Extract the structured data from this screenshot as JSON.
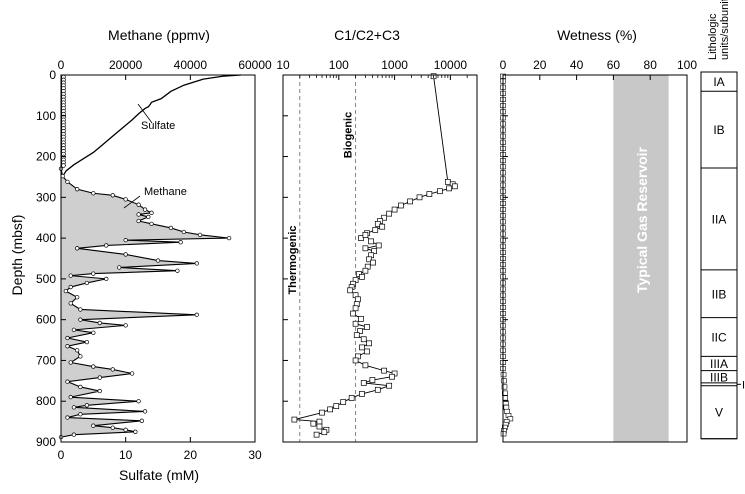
{
  "chart_data": [
    {
      "type": "line",
      "panel": "methane-sulfate",
      "title_top": "Methane (ppmv)",
      "title_bottom": "Sulfate (mM)",
      "ylabel": "Depth (mbsf)",
      "ylim": [
        0,
        900
      ],
      "y_inverted": true,
      "yticks": [
        "0",
        "100",
        "200",
        "300",
        "400",
        "500",
        "600",
        "700",
        "800",
        "900"
      ],
      "x_top": {
        "lim": [
          0,
          60000
        ],
        "ticks": [
          "0",
          "20000",
          "40000",
          "60000"
        ]
      },
      "x_bottom": {
        "lim": [
          0,
          30
        ],
        "ticks": [
          "0",
          "10",
          "20",
          "30"
        ]
      },
      "annotations": [
        "Sulfate",
        "Methane"
      ],
      "series": [
        {
          "axis": "bottom",
          "points": [
            [
              27.8,
              0
            ],
            [
              25,
              3
            ],
            [
              22,
              10
            ],
            [
              19,
              25
            ],
            [
              17,
              40
            ],
            [
              15.5,
              58
            ],
            [
              14,
              67
            ],
            [
              13.8,
              72
            ],
            [
              13.5,
              78
            ],
            [
              13,
              82
            ],
            [
              12,
              95
            ],
            [
              11,
              110
            ],
            [
              9.5,
              130
            ],
            [
              8,
              150
            ],
            [
              6.5,
              170
            ],
            [
              5,
              190
            ],
            [
              3.5,
              205
            ],
            [
              2,
              220
            ],
            [
              0.8,
              235
            ],
            [
              0.2,
              250
            ]
          ]
        },
        {
          "axis": "top",
          "points": [
            [
              0,
              230
            ],
            [
              500,
              248
            ],
            [
              2000,
              262
            ],
            [
              5000,
              280
            ],
            [
              10000,
              290
            ],
            [
              16000,
              295
            ],
            [
              20000,
              305
            ],
            [
              24000,
              318
            ],
            [
              26000,
              330
            ],
            [
              28000,
              338
            ],
            [
              24000,
              342
            ],
            [
              27000,
              348
            ],
            [
              24000,
              358
            ],
            [
              28000,
              365
            ],
            [
              34000,
              375
            ],
            [
              38000,
              385
            ],
            [
              43000,
              392
            ],
            [
              52000,
              400
            ],
            [
              20000,
              405
            ],
            [
              37000,
              410
            ],
            [
              14000,
              418
            ],
            [
              5000,
              425
            ],
            [
              20000,
              440
            ],
            [
              30000,
              455
            ],
            [
              42000,
              462
            ],
            [
              18000,
              472
            ],
            [
              36000,
              480
            ],
            [
              10000,
              487
            ],
            [
              3000,
              492
            ],
            [
              14000,
              500
            ],
            [
              8000,
              510
            ],
            [
              3000,
              520
            ],
            [
              1500,
              530
            ],
            [
              5000,
              545
            ],
            [
              3000,
              560
            ],
            [
              6000,
              575
            ],
            [
              42000,
              588
            ],
            [
              6000,
              600
            ],
            [
              12000,
              608
            ],
            [
              20000,
              614
            ],
            [
              4000,
              625
            ],
            [
              10000,
              632
            ],
            [
              2000,
              645
            ],
            [
              8000,
              655
            ],
            [
              2000,
              665
            ],
            [
              5000,
              675
            ],
            [
              6000,
              690
            ],
            [
              3000,
              705
            ],
            [
              10000,
              715
            ],
            [
              16000,
              722
            ],
            [
              22000,
              732
            ],
            [
              12000,
              742
            ],
            [
              2000,
              752
            ],
            [
              6000,
              765
            ],
            [
              12000,
              775
            ],
            [
              3000,
              790
            ],
            [
              24000,
              800
            ],
            [
              8000,
              810
            ],
            [
              4000,
              815
            ],
            [
              26000,
              825
            ],
            [
              6000,
              832
            ],
            [
              2000,
              840
            ],
            [
              25000,
              848
            ],
            [
              10000,
              860
            ],
            [
              16000,
              865
            ],
            [
              20000,
              870
            ],
            [
              23000,
              875
            ],
            [
              4000,
              882
            ],
            [
              0,
              888
            ]
          ]
        }
      ],
      "open_circles_depths": [
        5,
        12,
        19,
        26,
        33,
        40,
        47,
        54,
        61,
        68,
        75,
        82,
        89,
        96,
        103,
        110,
        117,
        124,
        131,
        138,
        145,
        152,
        159,
        166,
        173,
        180,
        187,
        194,
        201,
        208,
        215,
        222
      ]
    },
    {
      "type": "scatter",
      "panel": "c1-c2c3",
      "title": "C1/C2+C3",
      "xscale": "log",
      "xlim": [
        10,
        30000
      ],
      "xticks": [
        "10",
        "100",
        "1000",
        "10000"
      ],
      "ylim": [
        0,
        900
      ],
      "y_inverted": true,
      "reference_lines": [
        {
          "x": 20,
          "label": "Thermogenic"
        },
        {
          "x": 200,
          "label": "Biogenic"
        }
      ],
      "series": [
        {
          "points": [
            [
              5000,
              3
            ],
            [
              9000,
              262
            ],
            [
              11000,
              268
            ],
            [
              12000,
              273
            ],
            [
              9500,
              278
            ],
            [
              6500,
              285
            ],
            [
              4200,
              292
            ],
            [
              2800,
              300
            ],
            [
              1900,
              310
            ],
            [
              1300,
              320
            ],
            [
              1000,
              330
            ],
            [
              800,
              340
            ],
            [
              650,
              350
            ],
            [
              550,
              358
            ],
            [
              500,
              365
            ],
            [
              600,
              372
            ],
            [
              450,
              380
            ],
            [
              320,
              388
            ],
            [
              250,
              400
            ],
            [
              300,
              392
            ],
            [
              380,
              408
            ],
            [
              520,
              418
            ],
            [
              300,
              425
            ],
            [
              430,
              432
            ],
            [
              380,
              442
            ],
            [
              350,
              452
            ],
            [
              410,
              460
            ],
            [
              330,
              470
            ],
            [
              300,
              480
            ],
            [
              230,
              488
            ],
            [
              260,
              495
            ],
            [
              200,
              503
            ],
            [
              180,
              512
            ],
            [
              170,
              520
            ],
            [
              160,
              528
            ],
            [
              200,
              540
            ],
            [
              220,
              550
            ],
            [
              210,
              562
            ],
            [
              200,
              572
            ],
            [
              180,
              585
            ],
            [
              250,
              598
            ],
            [
              200,
              610
            ],
            [
              320,
              618
            ],
            [
              240,
              628
            ],
            [
              210,
              638
            ],
            [
              280,
              648
            ],
            [
              350,
              658
            ],
            [
              260,
              668
            ],
            [
              320,
              678
            ],
            [
              220,
              690
            ],
            [
              200,
              700
            ],
            [
              300,
              712
            ],
            [
              650,
              725
            ],
            [
              1000,
              732
            ],
            [
              900,
              740
            ],
            [
              400,
              748
            ],
            [
              280,
              755
            ],
            [
              800,
              762
            ],
            [
              500,
              772
            ],
            [
              260,
              782
            ],
            [
              170,
              792
            ],
            [
              120,
              802
            ],
            [
              90,
              812
            ],
            [
              70,
              820
            ],
            [
              50,
              828
            ],
            [
              16,
              845
            ],
            [
              45,
              850
            ],
            [
              35,
              855
            ],
            [
              45,
              862
            ],
            [
              60,
              870
            ],
            [
              55,
              876
            ],
            [
              40,
              882
            ]
          ]
        }
      ]
    },
    {
      "type": "scatter",
      "panel": "wetness",
      "title": "Wetness (%)",
      "xlim": [
        0,
        100
      ],
      "xticks": [
        "0",
        "20",
        "40",
        "60",
        "80",
        "100"
      ],
      "ylim": [
        0,
        900
      ],
      "y_inverted": true,
      "band": {
        "x": [
          60,
          90
        ],
        "label": "Typical Gas Reservoir"
      },
      "series": [
        {
          "points": [
            [
              0,
              3
            ],
            [
              0,
              15
            ],
            [
              0,
              30
            ],
            [
              0,
              45
            ],
            [
              0,
              60
            ],
            [
              0,
              75
            ],
            [
              0,
              90
            ],
            [
              0,
              105
            ],
            [
              0,
              120
            ],
            [
              0,
              135
            ],
            [
              0,
              150
            ],
            [
              0,
              165
            ],
            [
              0,
              180
            ],
            [
              0,
              195
            ],
            [
              0,
              210
            ],
            [
              0,
              225
            ],
            [
              0,
              240
            ],
            [
              0,
              255
            ],
            [
              0,
              270
            ],
            [
              0,
              285
            ],
            [
              0,
              300
            ],
            [
              0,
              315
            ],
            [
              0,
              330
            ],
            [
              0,
              345
            ],
            [
              0,
              360
            ],
            [
              0,
              375
            ],
            [
              0,
              390
            ],
            [
              0,
              405
            ],
            [
              0,
              420
            ],
            [
              0,
              435
            ],
            [
              0,
              450
            ],
            [
              0,
              465
            ],
            [
              0,
              480
            ],
            [
              0,
              495
            ],
            [
              0,
              510
            ],
            [
              0,
              525
            ],
            [
              0,
              540
            ],
            [
              0,
              555
            ],
            [
              0,
              570
            ],
            [
              0,
              585
            ],
            [
              0,
              600
            ],
            [
              0,
              615
            ],
            [
              0,
              630
            ],
            [
              0,
              645
            ],
            [
              0,
              660
            ],
            [
              0,
              675
            ],
            [
              0,
              690
            ],
            [
              0,
              705
            ],
            [
              0,
              720
            ],
            [
              0.3,
              735
            ],
            [
              0.5,
              750
            ],
            [
              0.8,
              765
            ],
            [
              1,
              780
            ],
            [
              1.2,
              792
            ],
            [
              1.5,
              804
            ],
            [
              1.8,
              815
            ],
            [
              2.2,
              825
            ],
            [
              3,
              835
            ],
            [
              4,
              843
            ],
            [
              2,
              850
            ],
            [
              1.5,
              857
            ],
            [
              1,
              864
            ],
            [
              0.5,
              872
            ],
            [
              0.3,
              880
            ]
          ]
        }
      ]
    },
    {
      "type": "table",
      "panel": "lithology",
      "header": "Lithologic units/subunits",
      "units": [
        {
          "label": "IA",
          "top": 0,
          "bottom": 40
        },
        {
          "label": "IB",
          "top": 40,
          "bottom": 228
        },
        {
          "label": "IIA",
          "top": 228,
          "bottom": 478
        },
        {
          "label": "IIB",
          "top": 478,
          "bottom": 595
        },
        {
          "label": "IIC",
          "top": 595,
          "bottom": 690
        },
        {
          "label": "IIIA",
          "top": 690,
          "bottom": 725
        },
        {
          "label": "IIIB",
          "top": 725,
          "bottom": 755
        },
        {
          "label": "IV",
          "top": 755,
          "bottom": 762
        },
        {
          "label": "V",
          "top": 762,
          "bottom": 892
        }
      ]
    }
  ]
}
